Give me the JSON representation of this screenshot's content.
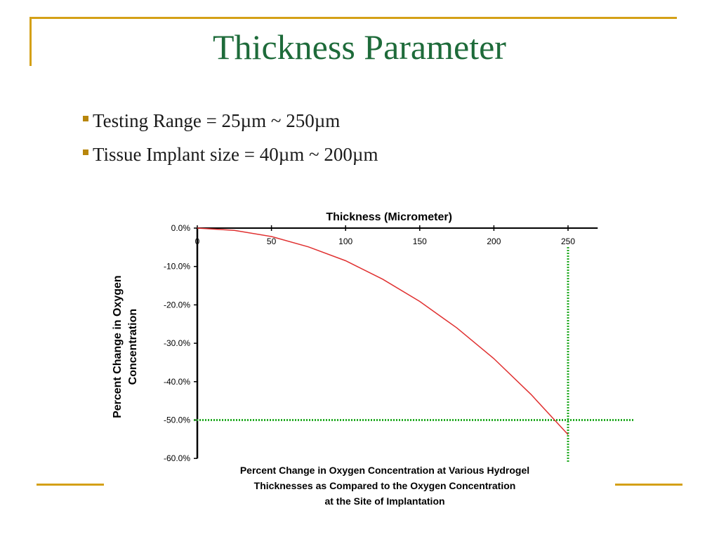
{
  "slide": {
    "title": "Thickness Parameter",
    "bullets": [
      "Testing Range = 25µm ~ 250µm",
      "Tissue Implant size = 40µm ~ 200µm"
    ]
  },
  "colors": {
    "title": "#1e6b3a",
    "accent_line": "#d4a017",
    "bullet_marker": "#b8860b",
    "curve": "#e03030",
    "reference_lines": "#22aa22"
  },
  "chart_data": {
    "type": "line",
    "title": "Thickness (Micrometer)",
    "xlabel": "Thickness (Micrometer)",
    "ylabel_lines": [
      "Percent Change in Oxygen",
      "Concentration"
    ],
    "caption_lines": [
      "Percent Change in Oxygen Concentration at Various Hydrogel",
      "Thicknesses as Compared to the Oxygen Concentration",
      "at the Site of Implantation"
    ],
    "x_axis_position": "top",
    "xlim": [
      0,
      270
    ],
    "ylim": [
      -60,
      0
    ],
    "x_ticks": [
      0,
      50,
      100,
      150,
      200,
      250
    ],
    "x_tick_labels": [
      "0",
      "50",
      "100",
      "150",
      "200",
      "250"
    ],
    "y_ticks": [
      0,
      -10,
      -20,
      -30,
      -40,
      -50,
      -60
    ],
    "y_tick_labels": [
      "0.0%",
      "-10.0%",
      "-20.0%",
      "-30.0%",
      "-40.0%",
      "-50.0%",
      "-60.0%"
    ],
    "grid": false,
    "series": [
      {
        "x": [
          0,
          25,
          50,
          75,
          100,
          125,
          150,
          175,
          200,
          225,
          250
        ],
        "y": [
          0,
          -0.6,
          -2.2,
          -4.9,
          -8.5,
          -13.3,
          -19.1,
          -26.0,
          -34.0,
          -43.3,
          -53.8
        ]
      }
    ],
    "reference_lines": [
      {
        "orientation": "vertical",
        "x": 250
      },
      {
        "orientation": "horizontal",
        "y": -50
      }
    ]
  }
}
